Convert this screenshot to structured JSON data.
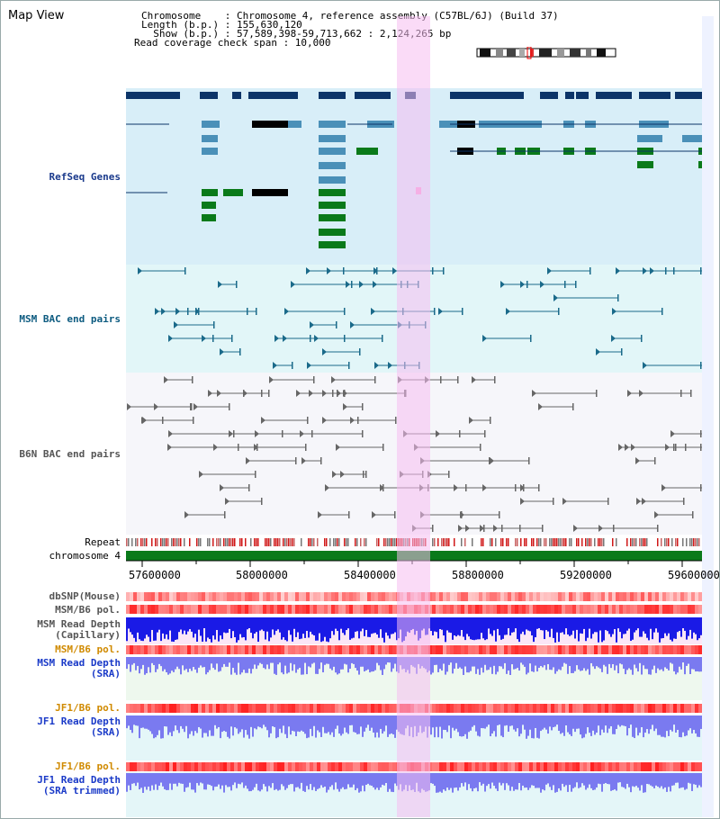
{
  "view": {
    "title": "Map View"
  },
  "info": {
    "chromosome_line": "Chromosome    : Chromosome 4, reference assembly (C57BL/6J) (Build 37)",
    "length_line": "Length (b.p.) : 155,630,120",
    "show_line": "  Show (b.p.) : 57,589,398-59,713,662 : 2,124,265 bp",
    "coverage_line": "Read coverage check span : 10,000"
  },
  "tracks": {
    "refseq": "RefSeq Genes",
    "msm_bac": "MSM BAC end pairs",
    "b6n_bac": "B6N BAC end pairs",
    "repeat": "Repeat",
    "chromosome": "chromosome 4",
    "dbsnp": "dbSNP(Mouse)",
    "msm_pol1": "MSM/B6 pol.",
    "msm_depth_cap": "MSM Read Depth\n(Capillary)",
    "msm_pol2": "MSM/B6 pol.",
    "msm_depth_sra": "MSM Read Depth\n(SRA)",
    "jf1_pol1": "JF1/B6 pol.",
    "jf1_depth_sra": "JF1 Read Depth\n(SRA)",
    "jf1_pol2": "JF1/B6 pol.",
    "jf1_depth_trim": "JF1 Read Depth\n(SRA trimmed)"
  },
  "axis": {
    "ticks": [
      "57600000",
      "58000000",
      "58400000",
      "58800000",
      "59200000",
      "59600000"
    ]
  },
  "colors": {
    "refseq_bg": "#d8eef8",
    "bac_msm_bg": "#e2f6f8",
    "bac_b6n_bg": "#f6f6fa",
    "highlight": "#f6bdf0",
    "gene_navy": "#0c3468",
    "gene_blue": "#4a90b8",
    "gene_green": "#0a7a1a",
    "chrom_green": "#0a7a1a",
    "depth_blue": "#1a1ae6",
    "depth_light": "#7a7af0"
  }
}
